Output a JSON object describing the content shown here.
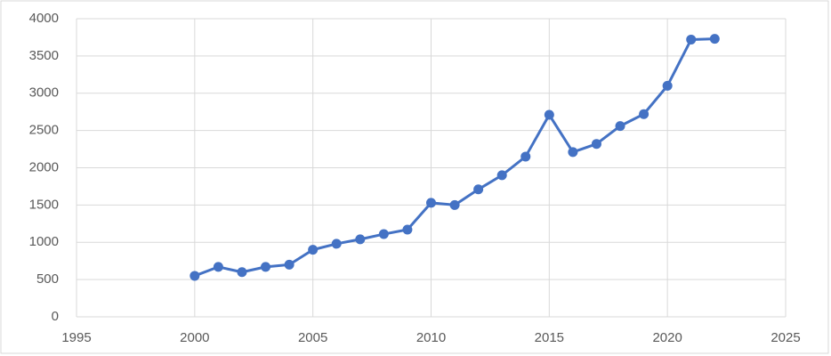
{
  "chart_data": {
    "type": "line",
    "x": [
      2000,
      2001,
      2002,
      2003,
      2004,
      2005,
      2006,
      2007,
      2008,
      2009,
      2010,
      2011,
      2012,
      2013,
      2014,
      2015,
      2016,
      2017,
      2018,
      2019,
      2020,
      2021,
      2022
    ],
    "values": [
      550,
      670,
      600,
      670,
      700,
      900,
      980,
      1040,
      1110,
      1170,
      1530,
      1500,
      1710,
      1900,
      2150,
      2710,
      2210,
      2320,
      2560,
      2720,
      3100,
      3720,
      3730
    ],
    "color": "#4472c4",
    "xlim": [
      1995,
      2025
    ],
    "xticks": [
      1995,
      2000,
      2005,
      2010,
      2015,
      2020,
      2025
    ],
    "ylim": [
      0,
      4000
    ],
    "yticks": [
      0,
      500,
      1000,
      1500,
      2000,
      2500,
      3000,
      3500,
      4000
    ],
    "grid": true
  }
}
